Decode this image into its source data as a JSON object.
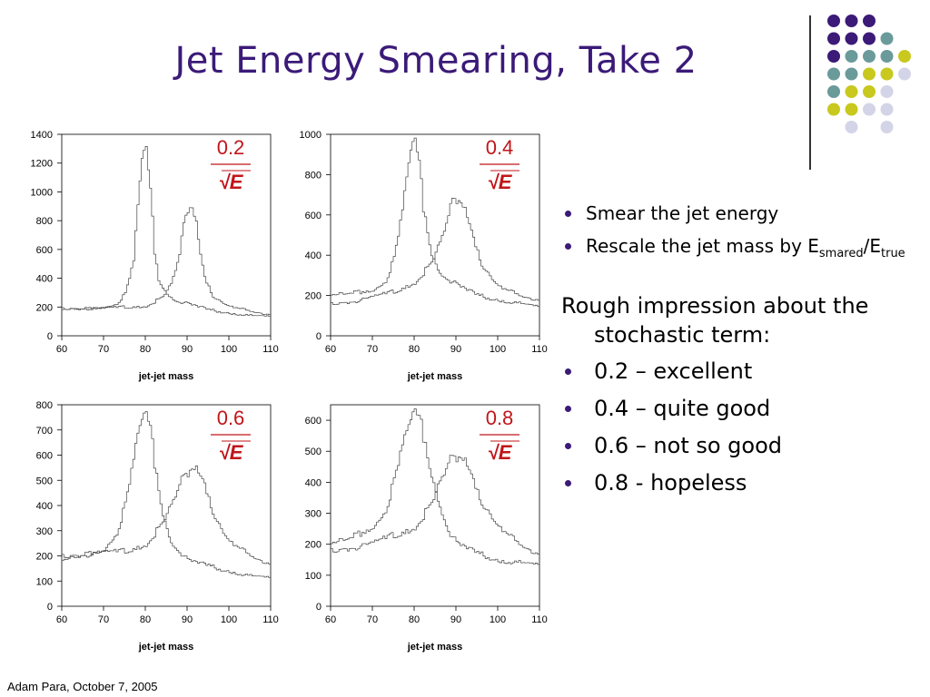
{
  "slide": {
    "title": "Jet Energy Smearing, Take 2",
    "footer": "Adam Para, October 7, 2005",
    "bullets_top": [
      {
        "text": "Smear the jet energy"
      },
      {
        "text_pre": "Rescale the jet mass by E",
        "sub1": "smared",
        "mid": "/E",
        "sub2": "true"
      }
    ],
    "rough_heading": "Rough impression about the stochastic term:",
    "ratings": [
      "0.2 – excellent",
      "0.4 – quite good",
      "0.6 – not so good",
      "0.8 - hopeless"
    ]
  },
  "colors": {
    "title": "#3b1a78",
    "formula": "#c0161a",
    "purple": "#3b1a78",
    "teal": "#6a9a9a",
    "yellow": "#c8c81e",
    "lavender": "#d4d4e8"
  },
  "chart_data": [
    {
      "type": "line",
      "xlabel": "jet-jet mass",
      "xlim": [
        60,
        110
      ],
      "ylim": [
        0,
        1400
      ],
      "xticks": [
        60,
        70,
        80,
        90,
        100,
        110
      ],
      "yticks": [
        0,
        200,
        400,
        600,
        800,
        1000,
        1200,
        1400
      ],
      "annotation": {
        "coef": "0.2",
        "root": "√E"
      },
      "series": [
        {
          "points": [
            [
              60,
              180
            ],
            [
              65,
              185
            ],
            [
              70,
              200
            ],
            [
              73,
              230
            ],
            [
              75,
              290
            ],
            [
              77,
              500
            ],
            [
              78,
              900
            ],
            [
              79,
              1230
            ],
            [
              80,
              1260
            ],
            [
              81,
              1000
            ],
            [
              82,
              600
            ],
            [
              83,
              400
            ],
            [
              85,
              300
            ],
            [
              87,
              250
            ],
            [
              90,
              220
            ],
            [
              95,
              180
            ],
            [
              100,
              160
            ],
            [
              105,
              140
            ],
            [
              110,
              130
            ]
          ]
        },
        {
          "points": [
            [
              60,
              190
            ],
            [
              65,
              190
            ],
            [
              70,
              190
            ],
            [
              75,
              200
            ],
            [
              80,
              210
            ],
            [
              84,
              260
            ],
            [
              86,
              350
            ],
            [
              88,
              550
            ],
            [
              89,
              760
            ],
            [
              90,
              900
            ],
            [
              91,
              930
            ],
            [
              92,
              800
            ],
            [
              93,
              580
            ],
            [
              94,
              420
            ],
            [
              96,
              280
            ],
            [
              98,
              230
            ],
            [
              100,
              200
            ],
            [
              105,
              170
            ],
            [
              110,
              150
            ]
          ]
        }
      ]
    },
    {
      "type": "line",
      "xlabel": "jet-jet mass",
      "xlim": [
        60,
        110
      ],
      "ylim": [
        0,
        1000
      ],
      "xticks": [
        60,
        70,
        80,
        90,
        100,
        110
      ],
      "yticks": [
        0,
        200,
        400,
        600,
        800,
        1000
      ],
      "annotation": {
        "coef": "0.4",
        "root": "√E"
      },
      "series": [
        {
          "points": [
            [
              60,
              200
            ],
            [
              65,
              210
            ],
            [
              70,
              230
            ],
            [
              73,
              280
            ],
            [
              75,
              380
            ],
            [
              77,
              600
            ],
            [
              78,
              780
            ],
            [
              79,
              920
            ],
            [
              80,
              940
            ],
            [
              81,
              850
            ],
            [
              82,
              650
            ],
            [
              84,
              420
            ],
            [
              86,
              320
            ],
            [
              90,
              250
            ],
            [
              95,
              200
            ],
            [
              100,
              180
            ],
            [
              105,
              160
            ],
            [
              110,
              140
            ]
          ]
        },
        {
          "points": [
            [
              60,
              160
            ],
            [
              65,
              170
            ],
            [
              70,
              190
            ],
            [
              75,
              220
            ],
            [
              80,
              270
            ],
            [
              84,
              350
            ],
            [
              86,
              450
            ],
            [
              88,
              580
            ],
            [
              89,
              660
            ],
            [
              90,
              690
            ],
            [
              91,
              690
            ],
            [
              92,
              640
            ],
            [
              94,
              500
            ],
            [
              96,
              360
            ],
            [
              98,
              290
            ],
            [
              100,
              240
            ],
            [
              105,
              200
            ],
            [
              110,
              180
            ]
          ]
        }
      ]
    },
    {
      "type": "line",
      "xlabel": "jet-jet mass",
      "xlim": [
        60,
        110
      ],
      "ylim": [
        0,
        800
      ],
      "xticks": [
        60,
        70,
        80,
        90,
        100,
        110
      ],
      "yticks": [
        0,
        100,
        200,
        300,
        400,
        500,
        600,
        700,
        800
      ],
      "annotation": {
        "coef": "0.6",
        "root": "√E"
      },
      "series": [
        {
          "points": [
            [
              60,
              180
            ],
            [
              65,
              200
            ],
            [
              70,
              230
            ],
            [
              73,
              300
            ],
            [
              75,
              400
            ],
            [
              77,
              560
            ],
            [
              78,
              680
            ],
            [
              79,
              740
            ],
            [
              80,
              740
            ],
            [
              81,
              700
            ],
            [
              82,
              580
            ],
            [
              84,
              380
            ],
            [
              86,
              260
            ],
            [
              90,
              180
            ],
            [
              95,
              160
            ],
            [
              100,
              140
            ],
            [
              105,
              120
            ],
            [
              110,
              110
            ]
          ]
        },
        {
          "points": [
            [
              60,
              200
            ],
            [
              65,
              205
            ],
            [
              70,
              210
            ],
            [
              75,
              220
            ],
            [
              80,
              250
            ],
            [
              84,
              320
            ],
            [
              86,
              390
            ],
            [
              88,
              470
            ],
            [
              90,
              540
            ],
            [
              91,
              570
            ],
            [
              92,
              560
            ],
            [
              94,
              500
            ],
            [
              96,
              380
            ],
            [
              98,
              300
            ],
            [
              100,
              250
            ],
            [
              105,
              200
            ],
            [
              110,
              170
            ]
          ]
        }
      ]
    },
    {
      "type": "line",
      "xlabel": "jet-jet mass",
      "xlim": [
        60,
        110
      ],
      "ylim": [
        0,
        650
      ],
      "xticks": [
        60,
        70,
        80,
        90,
        100,
        110
      ],
      "yticks": [
        0,
        100,
        200,
        300,
        400,
        500,
        600
      ],
      "annotation": {
        "coef": "0.8",
        "root": "√E"
      },
      "series": [
        {
          "points": [
            [
              60,
              200
            ],
            [
              65,
              220
            ],
            [
              70,
              260
            ],
            [
              73,
              320
            ],
            [
              75,
              400
            ],
            [
              77,
              500
            ],
            [
              78,
              560
            ],
            [
              79,
              600
            ],
            [
              80,
              610
            ],
            [
              81,
              600
            ],
            [
              82,
              560
            ],
            [
              84,
              440
            ],
            [
              86,
              330
            ],
            [
              88,
              250
            ],
            [
              90,
              200
            ],
            [
              95,
              170
            ],
            [
              100,
              150
            ],
            [
              105,
              140
            ],
            [
              110,
              130
            ]
          ]
        },
        {
          "points": [
            [
              60,
              180
            ],
            [
              65,
              190
            ],
            [
              70,
              200
            ],
            [
              75,
              230
            ],
            [
              80,
              260
            ],
            [
              84,
              320
            ],
            [
              86,
              390
            ],
            [
              88,
              450
            ],
            [
              90,
              490
            ],
            [
              91,
              500
            ],
            [
              92,
              480
            ],
            [
              94,
              420
            ],
            [
              96,
              340
            ],
            [
              98,
              290
            ],
            [
              100,
              250
            ],
            [
              105,
              200
            ],
            [
              110,
              170
            ]
          ]
        }
      ]
    }
  ]
}
